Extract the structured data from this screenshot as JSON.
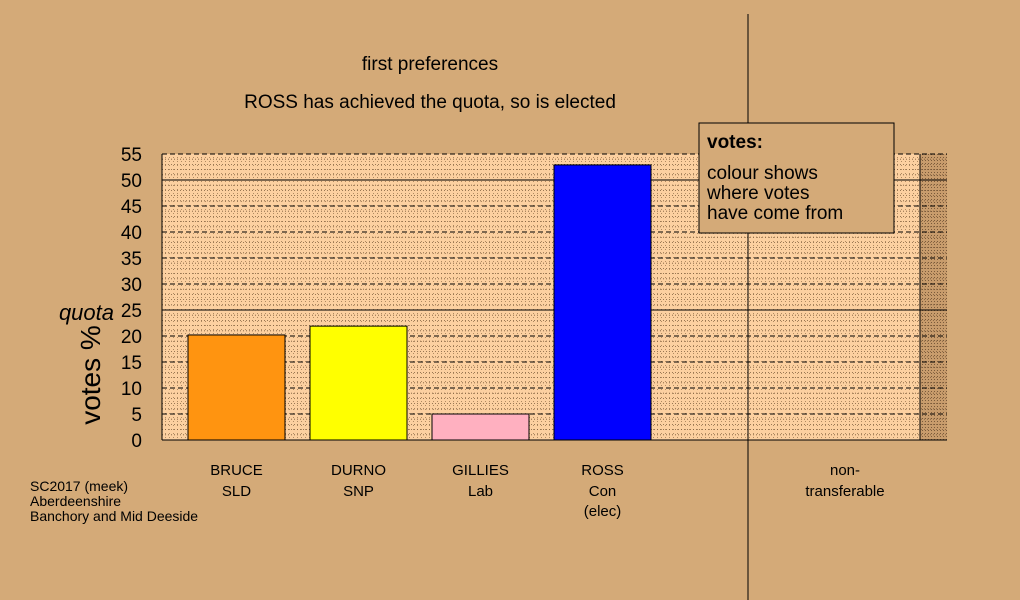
{
  "titles": {
    "line1": "first preferences",
    "line2": "ROSS has achieved the quota, so is elected"
  },
  "legend": {
    "heading": "votes:",
    "lines": [
      "colour shows",
      "where votes",
      "have come from"
    ]
  },
  "footer": [
    "SC2017 (meek)",
    "Aberdeenshire",
    "Banchory and Mid Deeside"
  ],
  "colors": {
    "background": "#d4aa78",
    "plot": "#fcd0a0",
    "nontransferable": "#c89c6c",
    "legend_box": "#d4aa78"
  },
  "chart_data": {
    "type": "bar",
    "ylabel": "votes %",
    "quota_label": "quota",
    "quota": 25,
    "ylim": [
      0,
      55
    ],
    "yticks": [
      "0",
      "5",
      "10",
      "15",
      "20",
      "25",
      "30",
      "35",
      "40",
      "45",
      "50",
      "55"
    ],
    "solid_gridlines": [
      25,
      50
    ],
    "candidates": [
      {
        "name": "BRUCE",
        "party": "SLD",
        "note": "",
        "value": 20.2,
        "color": "#ff9410"
      },
      {
        "name": "DURNO",
        "party": "SNP",
        "note": "",
        "value": 21.9,
        "color": "#ffff00"
      },
      {
        "name": "GILLIES",
        "party": "Lab",
        "note": "",
        "value": 5.0,
        "color": "#ffb0c0"
      },
      {
        "name": "ROSS",
        "party": "Con",
        "note": "(elec)",
        "value": 52.9,
        "color": "#0000ff"
      }
    ],
    "nontransferable": {
      "label_lines": [
        "non-",
        "transferable"
      ],
      "value": 0
    }
  }
}
